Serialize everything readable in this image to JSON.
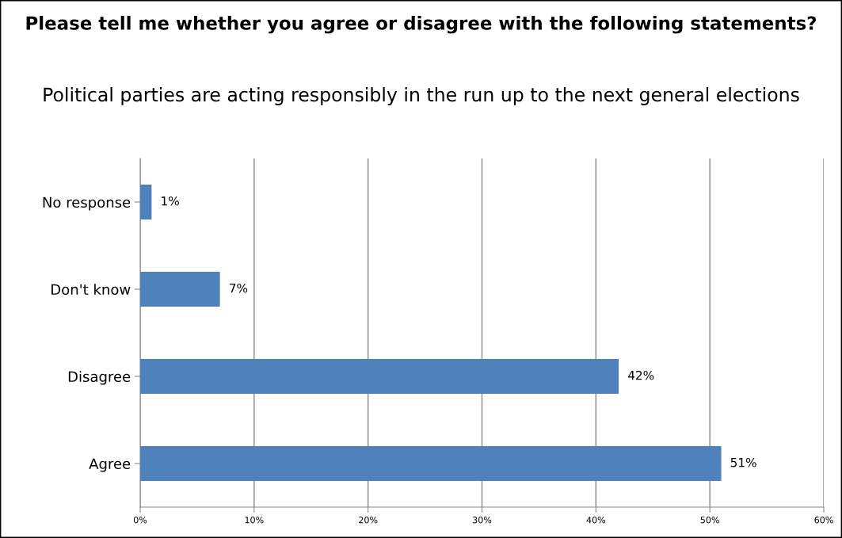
{
  "chart_data": {
    "type": "bar",
    "orientation": "horizontal",
    "title": "Please tell me whether you agree or disagree with the following statements?",
    "subtitle": "Political parties are acting responsibly in the run up to the next general elections",
    "categories": [
      "No response",
      "Don't know",
      "Disagree",
      "Agree"
    ],
    "values": [
      1,
      7,
      42,
      51
    ],
    "value_labels": [
      "1%",
      "7%",
      "42%",
      "51%"
    ],
    "color": "#4f81bd",
    "xlim": [
      0,
      60
    ],
    "xticks": [
      {
        "value": 0,
        "label": "0%"
      },
      {
        "value": 10,
        "label": "10%"
      },
      {
        "value": 20,
        "label": "20%"
      },
      {
        "value": 30,
        "label": "30%"
      },
      {
        "value": 40,
        "label": "40%"
      },
      {
        "value": 50,
        "label": "50%"
      },
      {
        "value": 60,
        "label": "60%"
      }
    ],
    "grid": "x"
  }
}
